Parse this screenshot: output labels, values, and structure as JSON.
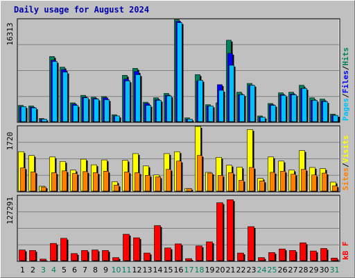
{
  "title": "Daily usage for August 2024",
  "colors": {
    "hits": "#00805c",
    "files": "#0000ff",
    "pages": "#00c0ff",
    "visits": "#ffff00",
    "sites": "#ff8000",
    "kbytes": "#ff0000",
    "weekend_label": "#00805c",
    "weekday_label": "#000000",
    "panel_bg": "#c0c0c0",
    "grid": "#808080"
  },
  "y_labels": {
    "top": "16313",
    "middle": "1720",
    "bottom": "127291"
  },
  "legend": {
    "top": [
      {
        "text": "Pages",
        "color": "#00c0ff"
      },
      {
        "text": "/",
        "color": "#000000"
      },
      {
        "text": "Files",
        "color": "#0000ff"
      },
      {
        "text": "/",
        "color": "#000000"
      },
      {
        "text": "Hits",
        "color": "#00805c"
      }
    ],
    "middle": [
      {
        "text": "Sites",
        "color": "#ff8000"
      },
      {
        "text": "/",
        "color": "#000000"
      },
      {
        "text": "Visits",
        "color": "#ffff00"
      }
    ],
    "bottom": [
      {
        "text": "kB F",
        "color": "#ff0000"
      }
    ]
  },
  "chart_data": [
    {
      "type": "bar",
      "panel": "hits-files-pages",
      "ylim": [
        0,
        16313
      ],
      "x": [
        1,
        2,
        3,
        4,
        5,
        6,
        7,
        8,
        9,
        10,
        11,
        12,
        13,
        14,
        15,
        16,
        17,
        18,
        19,
        20,
        21,
        22,
        23,
        24,
        25,
        26,
        27,
        28,
        29,
        30,
        31
      ],
      "weekend_days": [
        3,
        4,
        10,
        11,
        17,
        18,
        24,
        25,
        31
      ],
      "series": [
        {
          "name": "Hits",
          "values": [
            2600,
            2500,
            500,
            10400,
            8700,
            3000,
            4200,
            3900,
            4000,
            1100,
            7400,
            8500,
            3100,
            3800,
            4500,
            16300,
            600,
            7500,
            2700,
            3000,
            13000,
            4700,
            6100,
            900,
            2900,
            4600,
            4700,
            5800,
            3800,
            3600,
            1200
          ]
        },
        {
          "name": "Files",
          "values": [
            2400,
            2300,
            400,
            9800,
            8300,
            2800,
            3900,
            3700,
            3800,
            900,
            6800,
            8000,
            2900,
            3500,
            4200,
            16000,
            400,
            6500,
            2500,
            5900,
            10900,
            4300,
            5800,
            700,
            2700,
            4300,
            4400,
            5300,
            3400,
            3300,
            1000
          ]
        },
        {
          "name": "Pages",
          "values": [
            2400,
            2200,
            400,
            9600,
            7900,
            2600,
            3800,
            3600,
            3500,
            900,
            6500,
            7500,
            2600,
            3400,
            4100,
            15800,
            400,
            6600,
            2500,
            5000,
            9000,
            4300,
            5800,
            700,
            2600,
            4200,
            4300,
            5300,
            3400,
            3200,
            1000
          ]
        }
      ]
    },
    {
      "type": "bar",
      "panel": "visits-sites",
      "ylim": [
        0,
        1720
      ],
      "x": [
        1,
        2,
        3,
        4,
        5,
        6,
        7,
        8,
        9,
        10,
        11,
        12,
        13,
        14,
        15,
        16,
        17,
        18,
        19,
        20,
        21,
        22,
        23,
        24,
        25,
        26,
        27,
        28,
        29,
        30,
        31
      ],
      "weekend_days": [
        3,
        4,
        10,
        11,
        17,
        18,
        24,
        25,
        31
      ],
      "series": [
        {
          "name": "Visits",
          "values": [
            1050,
            950,
            130,
            910,
            790,
            560,
            850,
            700,
            830,
            250,
            820,
            1000,
            670,
            430,
            1000,
            1050,
            70,
            1720,
            500,
            900,
            690,
            640,
            1640,
            340,
            910,
            800,
            560,
            1080,
            630,
            600,
            240
          ]
        },
        {
          "name": "Sites",
          "values": [
            620,
            510,
            110,
            490,
            540,
            470,
            520,
            490,
            530,
            160,
            510,
            490,
            420,
            380,
            580,
            800,
            70,
            950,
            480,
            420,
            490,
            290,
            630,
            270,
            500,
            530,
            450,
            580,
            430,
            480,
            140
          ]
        }
      ]
    },
    {
      "type": "bar",
      "panel": "kbytes",
      "ylim": [
        0,
        127291
      ],
      "x": [
        1,
        2,
        3,
        4,
        5,
        6,
        7,
        8,
        9,
        10,
        11,
        12,
        13,
        14,
        15,
        16,
        17,
        18,
        19,
        20,
        21,
        22,
        23,
        24,
        25,
        26,
        27,
        28,
        29,
        30,
        31
      ],
      "weekend_days": [
        3,
        4,
        10,
        11,
        17,
        18,
        24,
        25,
        31
      ],
      "series": [
        {
          "name": "kB F",
          "values": [
            21000,
            20000,
            3000,
            34000,
            44000,
            14000,
            20000,
            21000,
            20000,
            6000,
            52000,
            45000,
            15000,
            69000,
            25000,
            33000,
            4000,
            29000,
            37000,
            114000,
            120000,
            15000,
            67000,
            6000,
            16000,
            23000,
            20000,
            35000,
            19000,
            24000,
            5000
          ]
        }
      ]
    }
  ]
}
